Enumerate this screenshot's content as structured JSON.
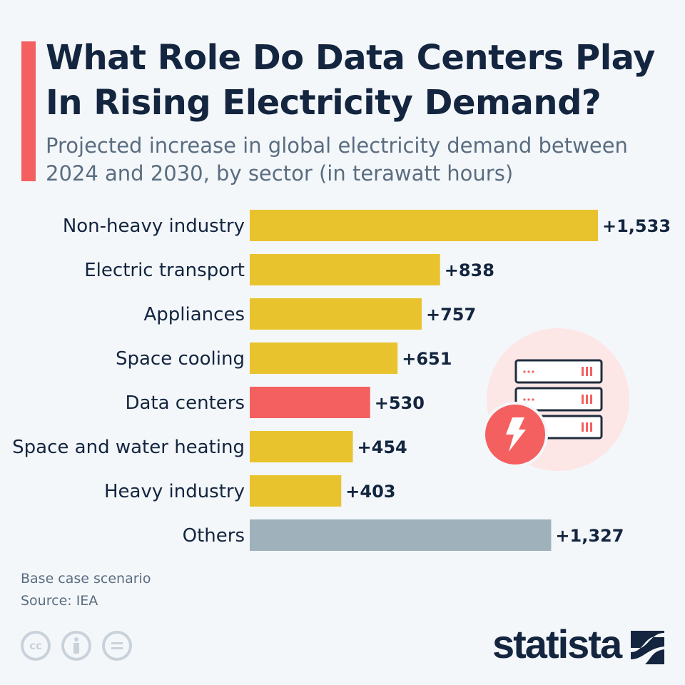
{
  "header": {
    "title": "What Role Do Data Centers Play In Rising Electricity Demand?",
    "subtitle": "Projected increase in global electricity demand between 2024 and 2030, by sector (in terawatt hours)"
  },
  "chart_data": {
    "type": "bar",
    "orientation": "horizontal",
    "title": "What Role Do Data Centers Play In Rising Electricity Demand?",
    "subtitle": "Projected increase in global electricity demand between 2024 and 2030, by sector (in terawatt hours)",
    "categories": [
      "Non-heavy industry",
      "Electric transport",
      "Appliances",
      "Space cooling",
      "Data centers",
      "Space and water heating",
      "Heavy industry",
      "Others"
    ],
    "values": [
      1533,
      838,
      757,
      651,
      530,
      454,
      403,
      1327
    ],
    "value_labels": [
      "+1,533",
      "+838",
      "+757",
      "+651",
      "+530",
      "+454",
      "+403",
      "+1,327"
    ],
    "bar_colors": [
      "#e9c32e",
      "#e9c32e",
      "#e9c32e",
      "#e9c32e",
      "#f4605f",
      "#e9c32e",
      "#e9c32e",
      "#9fb2bc"
    ],
    "xlim": [
      0,
      1533
    ],
    "grid": false,
    "xlabel": "",
    "ylabel": ""
  },
  "colors": {
    "accent": "#f4605f",
    "bar": "#e9c32e",
    "highlight": "#f4605f",
    "others": "#9fb2bc",
    "navy": "#13253f"
  },
  "illustration": {
    "icon": "server-rack-lightning-icon"
  },
  "footer": {
    "note": "Base case scenario",
    "source": "Source: IEA",
    "license_icons": [
      "cc-icon",
      "attribution-icon",
      "no-derivatives-icon"
    ],
    "logo": "statista"
  }
}
